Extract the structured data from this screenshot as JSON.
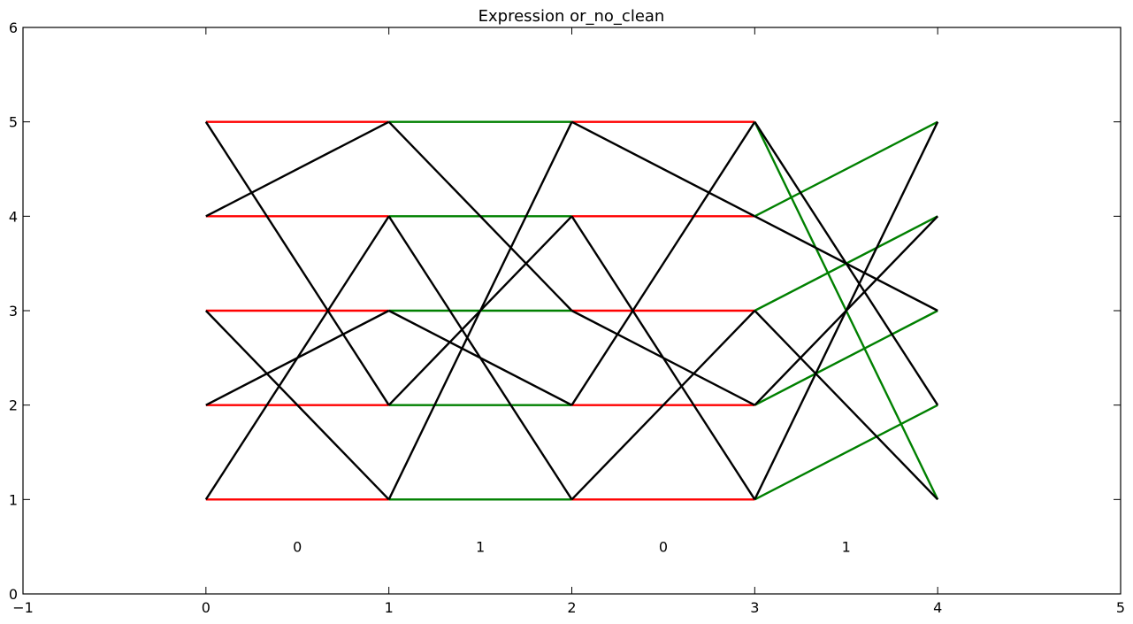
{
  "chart_data": {
    "type": "line",
    "title": "Expression or_no_clean",
    "xlim": [
      -1,
      5
    ],
    "ylim": [
      0,
      6
    ],
    "xticks": [
      -1,
      0,
      1,
      2,
      3,
      4,
      5
    ],
    "yticks": [
      0,
      1,
      2,
      3,
      4,
      5,
      6
    ],
    "grid": false,
    "colors": {
      "red": "#ff0000",
      "green": "#008000",
      "black": "#000000"
    },
    "stage_labels": [
      {
        "x": 0.5,
        "y": 0.5,
        "text": "0"
      },
      {
        "x": 1.5,
        "y": 0.5,
        "text": "1"
      },
      {
        "x": 2.5,
        "y": 0.5,
        "text": "0"
      },
      {
        "x": 3.5,
        "y": 0.5,
        "text": "1"
      }
    ],
    "segments": [
      {
        "x1": 0,
        "y1": 5,
        "x2": 1,
        "y2": 5,
        "color": "red"
      },
      {
        "x1": 0,
        "y1": 4,
        "x2": 1,
        "y2": 4,
        "color": "red"
      },
      {
        "x1": 0,
        "y1": 3,
        "x2": 1,
        "y2": 3,
        "color": "red"
      },
      {
        "x1": 0,
        "y1": 2,
        "x2": 1,
        "y2": 2,
        "color": "red"
      },
      {
        "x1": 0,
        "y1": 1,
        "x2": 1,
        "y2": 1,
        "color": "red"
      },
      {
        "x1": 0,
        "y1": 5,
        "x2": 1,
        "y2": 2,
        "color": "black"
      },
      {
        "x1": 0,
        "y1": 4,
        "x2": 1,
        "y2": 5,
        "color": "black"
      },
      {
        "x1": 0,
        "y1": 3,
        "x2": 1,
        "y2": 1,
        "color": "black"
      },
      {
        "x1": 0,
        "y1": 2,
        "x2": 1,
        "y2": 3,
        "color": "black"
      },
      {
        "x1": 0,
        "y1": 1,
        "x2": 1,
        "y2": 4,
        "color": "black"
      },
      {
        "x1": 1,
        "y1": 5,
        "x2": 2,
        "y2": 5,
        "color": "green"
      },
      {
        "x1": 1,
        "y1": 4,
        "x2": 2,
        "y2": 4,
        "color": "green"
      },
      {
        "x1": 1,
        "y1": 3,
        "x2": 2,
        "y2": 3,
        "color": "green"
      },
      {
        "x1": 1,
        "y1": 2,
        "x2": 2,
        "y2": 2,
        "color": "green"
      },
      {
        "x1": 1,
        "y1": 1,
        "x2": 2,
        "y2": 1,
        "color": "green"
      },
      {
        "x1": 1,
        "y1": 5,
        "x2": 2,
        "y2": 3,
        "color": "black"
      },
      {
        "x1": 1,
        "y1": 4,
        "x2": 2,
        "y2": 1,
        "color": "black"
      },
      {
        "x1": 1,
        "y1": 3,
        "x2": 2,
        "y2": 2,
        "color": "black"
      },
      {
        "x1": 1,
        "y1": 2,
        "x2": 2,
        "y2": 4,
        "color": "black"
      },
      {
        "x1": 1,
        "y1": 1,
        "x2": 2,
        "y2": 5,
        "color": "black"
      },
      {
        "x1": 2,
        "y1": 5,
        "x2": 3,
        "y2": 5,
        "color": "red"
      },
      {
        "x1": 2,
        "y1": 4,
        "x2": 3,
        "y2": 4,
        "color": "red"
      },
      {
        "x1": 2,
        "y1": 3,
        "x2": 3,
        "y2": 3,
        "color": "red"
      },
      {
        "x1": 2,
        "y1": 2,
        "x2": 3,
        "y2": 2,
        "color": "red"
      },
      {
        "x1": 2,
        "y1": 1,
        "x2": 3,
        "y2": 1,
        "color": "red"
      },
      {
        "x1": 2,
        "y1": 5,
        "x2": 3,
        "y2": 4,
        "color": "black"
      },
      {
        "x1": 2,
        "y1": 4,
        "x2": 3,
        "y2": 1,
        "color": "black"
      },
      {
        "x1": 2,
        "y1": 3,
        "x2": 3,
        "y2": 2,
        "color": "black"
      },
      {
        "x1": 2,
        "y1": 2,
        "x2": 3,
        "y2": 5,
        "color": "black"
      },
      {
        "x1": 2,
        "y1": 1,
        "x2": 3,
        "y2": 3,
        "color": "black"
      },
      {
        "x1": 3,
        "y1": 5,
        "x2": 4,
        "y2": 1,
        "color": "green"
      },
      {
        "x1": 3,
        "y1": 4,
        "x2": 4,
        "y2": 5,
        "color": "green"
      },
      {
        "x1": 3,
        "y1": 3,
        "x2": 4,
        "y2": 4,
        "color": "green"
      },
      {
        "x1": 3,
        "y1": 2,
        "x2": 4,
        "y2": 3,
        "color": "green"
      },
      {
        "x1": 3,
        "y1": 1,
        "x2": 4,
        "y2": 2,
        "color": "green"
      },
      {
        "x1": 3,
        "y1": 5,
        "x2": 4,
        "y2": 2,
        "color": "black"
      },
      {
        "x1": 3,
        "y1": 4,
        "x2": 4,
        "y2": 3,
        "color": "black"
      },
      {
        "x1": 3,
        "y1": 3,
        "x2": 4,
        "y2": 1,
        "color": "black"
      },
      {
        "x1": 3,
        "y1": 2,
        "x2": 4,
        "y2": 4,
        "color": "black"
      },
      {
        "x1": 3,
        "y1": 1,
        "x2": 4,
        "y2": 5,
        "color": "black"
      }
    ]
  }
}
